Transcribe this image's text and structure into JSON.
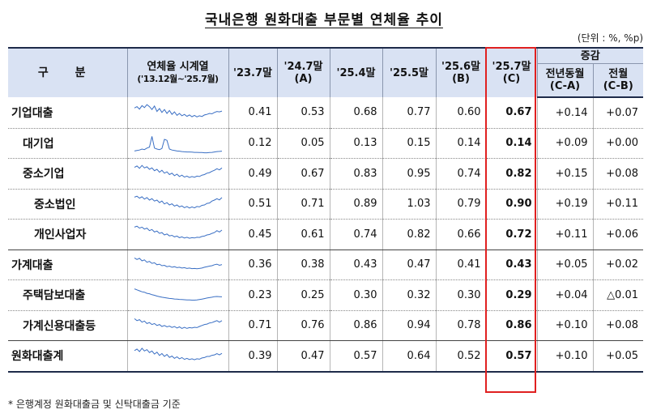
{
  "title": "국내은행 원화대출 부문별 연체율 추이",
  "unit": "(단위 : %, %p)",
  "headers": {
    "category": "구 분",
    "series_l1": "연체율 시계열",
    "series_l2": "('13.12월~'25.7월)",
    "c1_l1": "'23.7말",
    "c1_l2": "",
    "c2_l1": "'24.7말",
    "c2_l2": "(A)",
    "c3_l1": "'25.4말",
    "c3_l2": "",
    "c4_l1": "'25.5말",
    "c4_l2": "",
    "c5_l1": "'25.6말",
    "c5_l2": "(B)",
    "c6_l1": "'25.7말",
    "c6_l2": "(C)",
    "change": "증감",
    "yoy_l1": "전년동월",
    "yoy_l2": "(C-A)",
    "mom_l1": "전월",
    "mom_l2": "(C-B)"
  },
  "rows": [
    {
      "label": "기업대출",
      "values": [
        "0.41",
        "0.53",
        "0.68",
        "0.77",
        "0.60",
        "0.67"
      ],
      "yoy": "+0.14",
      "mom": "+0.07",
      "trend": [
        0.78,
        0.85,
        0.72,
        0.9,
        0.8,
        0.95,
        0.85,
        0.7,
        0.88,
        0.6,
        0.75,
        0.55,
        0.7,
        0.5,
        0.65,
        0.45,
        0.58,
        0.4,
        0.5,
        0.38,
        0.45,
        0.35,
        0.42,
        0.33,
        0.4,
        0.32,
        0.38,
        0.34,
        0.42,
        0.45,
        0.5,
        0.48,
        0.55,
        0.6,
        0.58,
        0.62
      ]
    },
    {
      "label": "대기업",
      "values": [
        "0.12",
        "0.05",
        "0.13",
        "0.15",
        "0.14",
        "0.14"
      ],
      "yoy": "+0.09",
      "mom": "+0.00",
      "trend": [
        0.15,
        0.18,
        0.2,
        0.25,
        0.22,
        0.3,
        0.35,
        0.9,
        0.3,
        0.25,
        0.22,
        0.28,
        0.75,
        0.7,
        0.25,
        0.2,
        0.18,
        0.15,
        0.14,
        0.12,
        0.11,
        0.1,
        0.1,
        0.09,
        0.08,
        0.08,
        0.07,
        0.07,
        0.06,
        0.06,
        0.07,
        0.08,
        0.1,
        0.12,
        0.13,
        0.14
      ]
    },
    {
      "label": "중소기업",
      "values": [
        "0.49",
        "0.67",
        "0.83",
        "0.95",
        "0.74",
        "0.82"
      ],
      "yoy": "+0.15",
      "mom": "+0.08",
      "trend": [
        0.85,
        0.92,
        0.8,
        0.95,
        0.82,
        0.88,
        0.75,
        0.82,
        0.68,
        0.75,
        0.6,
        0.7,
        0.55,
        0.62,
        0.48,
        0.55,
        0.42,
        0.5,
        0.38,
        0.45,
        0.35,
        0.4,
        0.33,
        0.38,
        0.34,
        0.4,
        0.38,
        0.45,
        0.48,
        0.55,
        0.58,
        0.65,
        0.7,
        0.78,
        0.72,
        0.82
      ]
    },
    {
      "label": "중소법인",
      "values": [
        "0.51",
        "0.71",
        "0.89",
        "1.03",
        "0.79",
        "0.90"
      ],
      "yoy": "+0.19",
      "mom": "+0.11",
      "trend": [
        0.9,
        0.95,
        0.85,
        0.92,
        0.8,
        0.88,
        0.75,
        0.82,
        0.7,
        0.75,
        0.62,
        0.7,
        0.55,
        0.62,
        0.5,
        0.56,
        0.44,
        0.5,
        0.4,
        0.45,
        0.36,
        0.42,
        0.34,
        0.4,
        0.35,
        0.42,
        0.4,
        0.48,
        0.5,
        0.58,
        0.6,
        0.7,
        0.75,
        0.82,
        0.76,
        0.88
      ]
    },
    {
      "label": "개인사업자",
      "values": [
        "0.45",
        "0.61",
        "0.74",
        "0.82",
        "0.66",
        "0.72"
      ],
      "yoy": "+0.11",
      "mom": "+0.06",
      "trend": [
        0.9,
        0.95,
        0.85,
        0.9,
        0.8,
        0.85,
        0.72,
        0.78,
        0.65,
        0.7,
        0.58,
        0.62,
        0.5,
        0.55,
        0.45,
        0.48,
        0.4,
        0.44,
        0.36,
        0.4,
        0.34,
        0.38,
        0.33,
        0.36,
        0.34,
        0.38,
        0.37,
        0.42,
        0.44,
        0.5,
        0.52,
        0.58,
        0.62,
        0.72,
        0.65,
        0.75
      ]
    },
    {
      "label": "가계대출",
      "values": [
        "0.36",
        "0.38",
        "0.43",
        "0.47",
        "0.41",
        "0.43"
      ],
      "yoy": "+0.05",
      "mom": "+0.02",
      "trend": [
        0.9,
        0.82,
        0.88,
        0.75,
        0.8,
        0.68,
        0.72,
        0.62,
        0.65,
        0.55,
        0.58,
        0.5,
        0.52,
        0.45,
        0.48,
        0.42,
        0.45,
        0.4,
        0.42,
        0.38,
        0.4,
        0.36,
        0.38,
        0.35,
        0.36,
        0.34,
        0.36,
        0.38,
        0.42,
        0.45,
        0.48,
        0.5,
        0.55,
        0.58,
        0.52,
        0.56
      ]
    },
    {
      "label": "주택담보대출",
      "values": [
        "0.23",
        "0.25",
        "0.30",
        "0.32",
        "0.30",
        "0.29"
      ],
      "yoy": "+0.04",
      "mom": "△0.01",
      "trend": [
        0.85,
        0.8,
        0.75,
        0.7,
        0.68,
        0.62,
        0.6,
        0.55,
        0.52,
        0.48,
        0.45,
        0.42,
        0.4,
        0.38,
        0.36,
        0.35,
        0.33,
        0.32,
        0.31,
        0.3,
        0.29,
        0.28,
        0.28,
        0.27,
        0.27,
        0.28,
        0.3,
        0.32,
        0.35,
        0.38,
        0.4,
        0.42,
        0.45,
        0.46,
        0.45,
        0.44
      ]
    },
    {
      "label": "가계신용대출등",
      "values": [
        "0.71",
        "0.76",
        "0.86",
        "0.94",
        "0.78",
        "0.86"
      ],
      "yoy": "+0.10",
      "mom": "+0.08",
      "trend": [
        0.9,
        0.8,
        0.85,
        0.72,
        0.78,
        0.65,
        0.7,
        0.6,
        0.65,
        0.55,
        0.6,
        0.5,
        0.55,
        0.48,
        0.52,
        0.45,
        0.5,
        0.42,
        0.48,
        0.4,
        0.46,
        0.4,
        0.44,
        0.42,
        0.46,
        0.44,
        0.5,
        0.55,
        0.6,
        0.62,
        0.68,
        0.7,
        0.75,
        0.8,
        0.72,
        0.8
      ]
    },
    {
      "label": "원화대출계",
      "values": [
        "0.39",
        "0.47",
        "0.57",
        "0.64",
        "0.52",
        "0.57"
      ],
      "yoy": "+0.10",
      "mom": "+0.05",
      "trend": [
        0.8,
        0.88,
        0.75,
        0.92,
        0.78,
        0.85,
        0.7,
        0.78,
        0.62,
        0.72,
        0.55,
        0.65,
        0.5,
        0.6,
        0.45,
        0.52,
        0.4,
        0.48,
        0.38,
        0.44,
        0.35,
        0.4,
        0.34,
        0.38,
        0.33,
        0.38,
        0.36,
        0.42,
        0.44,
        0.5,
        0.5,
        0.56,
        0.58,
        0.64,
        0.58,
        0.66
      ]
    }
  ],
  "note": "* 은행계정 원화대출금 및 신탁대출금 기준",
  "colors": {
    "header_bg": "#d9e2f3",
    "highlight": "#e02020",
    "sparkline": "#3a6fc4"
  }
}
